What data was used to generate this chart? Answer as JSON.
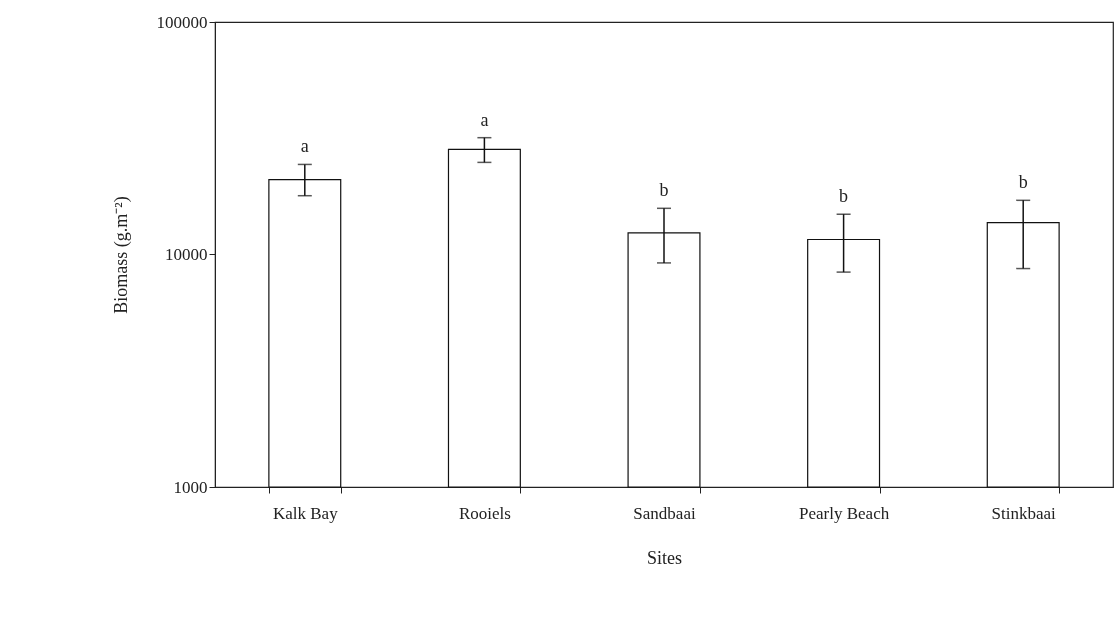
{
  "chart_data": {
    "type": "bar",
    "xlabel": "Sites",
    "ylabel": "Biomass (g.m⁻²)",
    "categories": [
      "Kalk Bay",
      "Rooiels",
      "Sandbaai",
      "Pearly Beach",
      "Stinkbaai"
    ],
    "values": [
      21000,
      28300,
      12400,
      11600,
      13700
    ],
    "errors": [
      [
        17900,
        24400
      ],
      [
        24900,
        31800
      ],
      [
        9200,
        15800
      ],
      [
        8400,
        14900
      ],
      [
        8700,
        17100
      ]
    ],
    "color": "#ffffff",
    "log": true,
    "ylim": [
      1000,
      100000
    ],
    "yticks": [
      1000,
      10000,
      100000
    ],
    "grid": false,
    "annotations": [
      "a",
      "a",
      "b",
      "b",
      "b"
    ]
  }
}
